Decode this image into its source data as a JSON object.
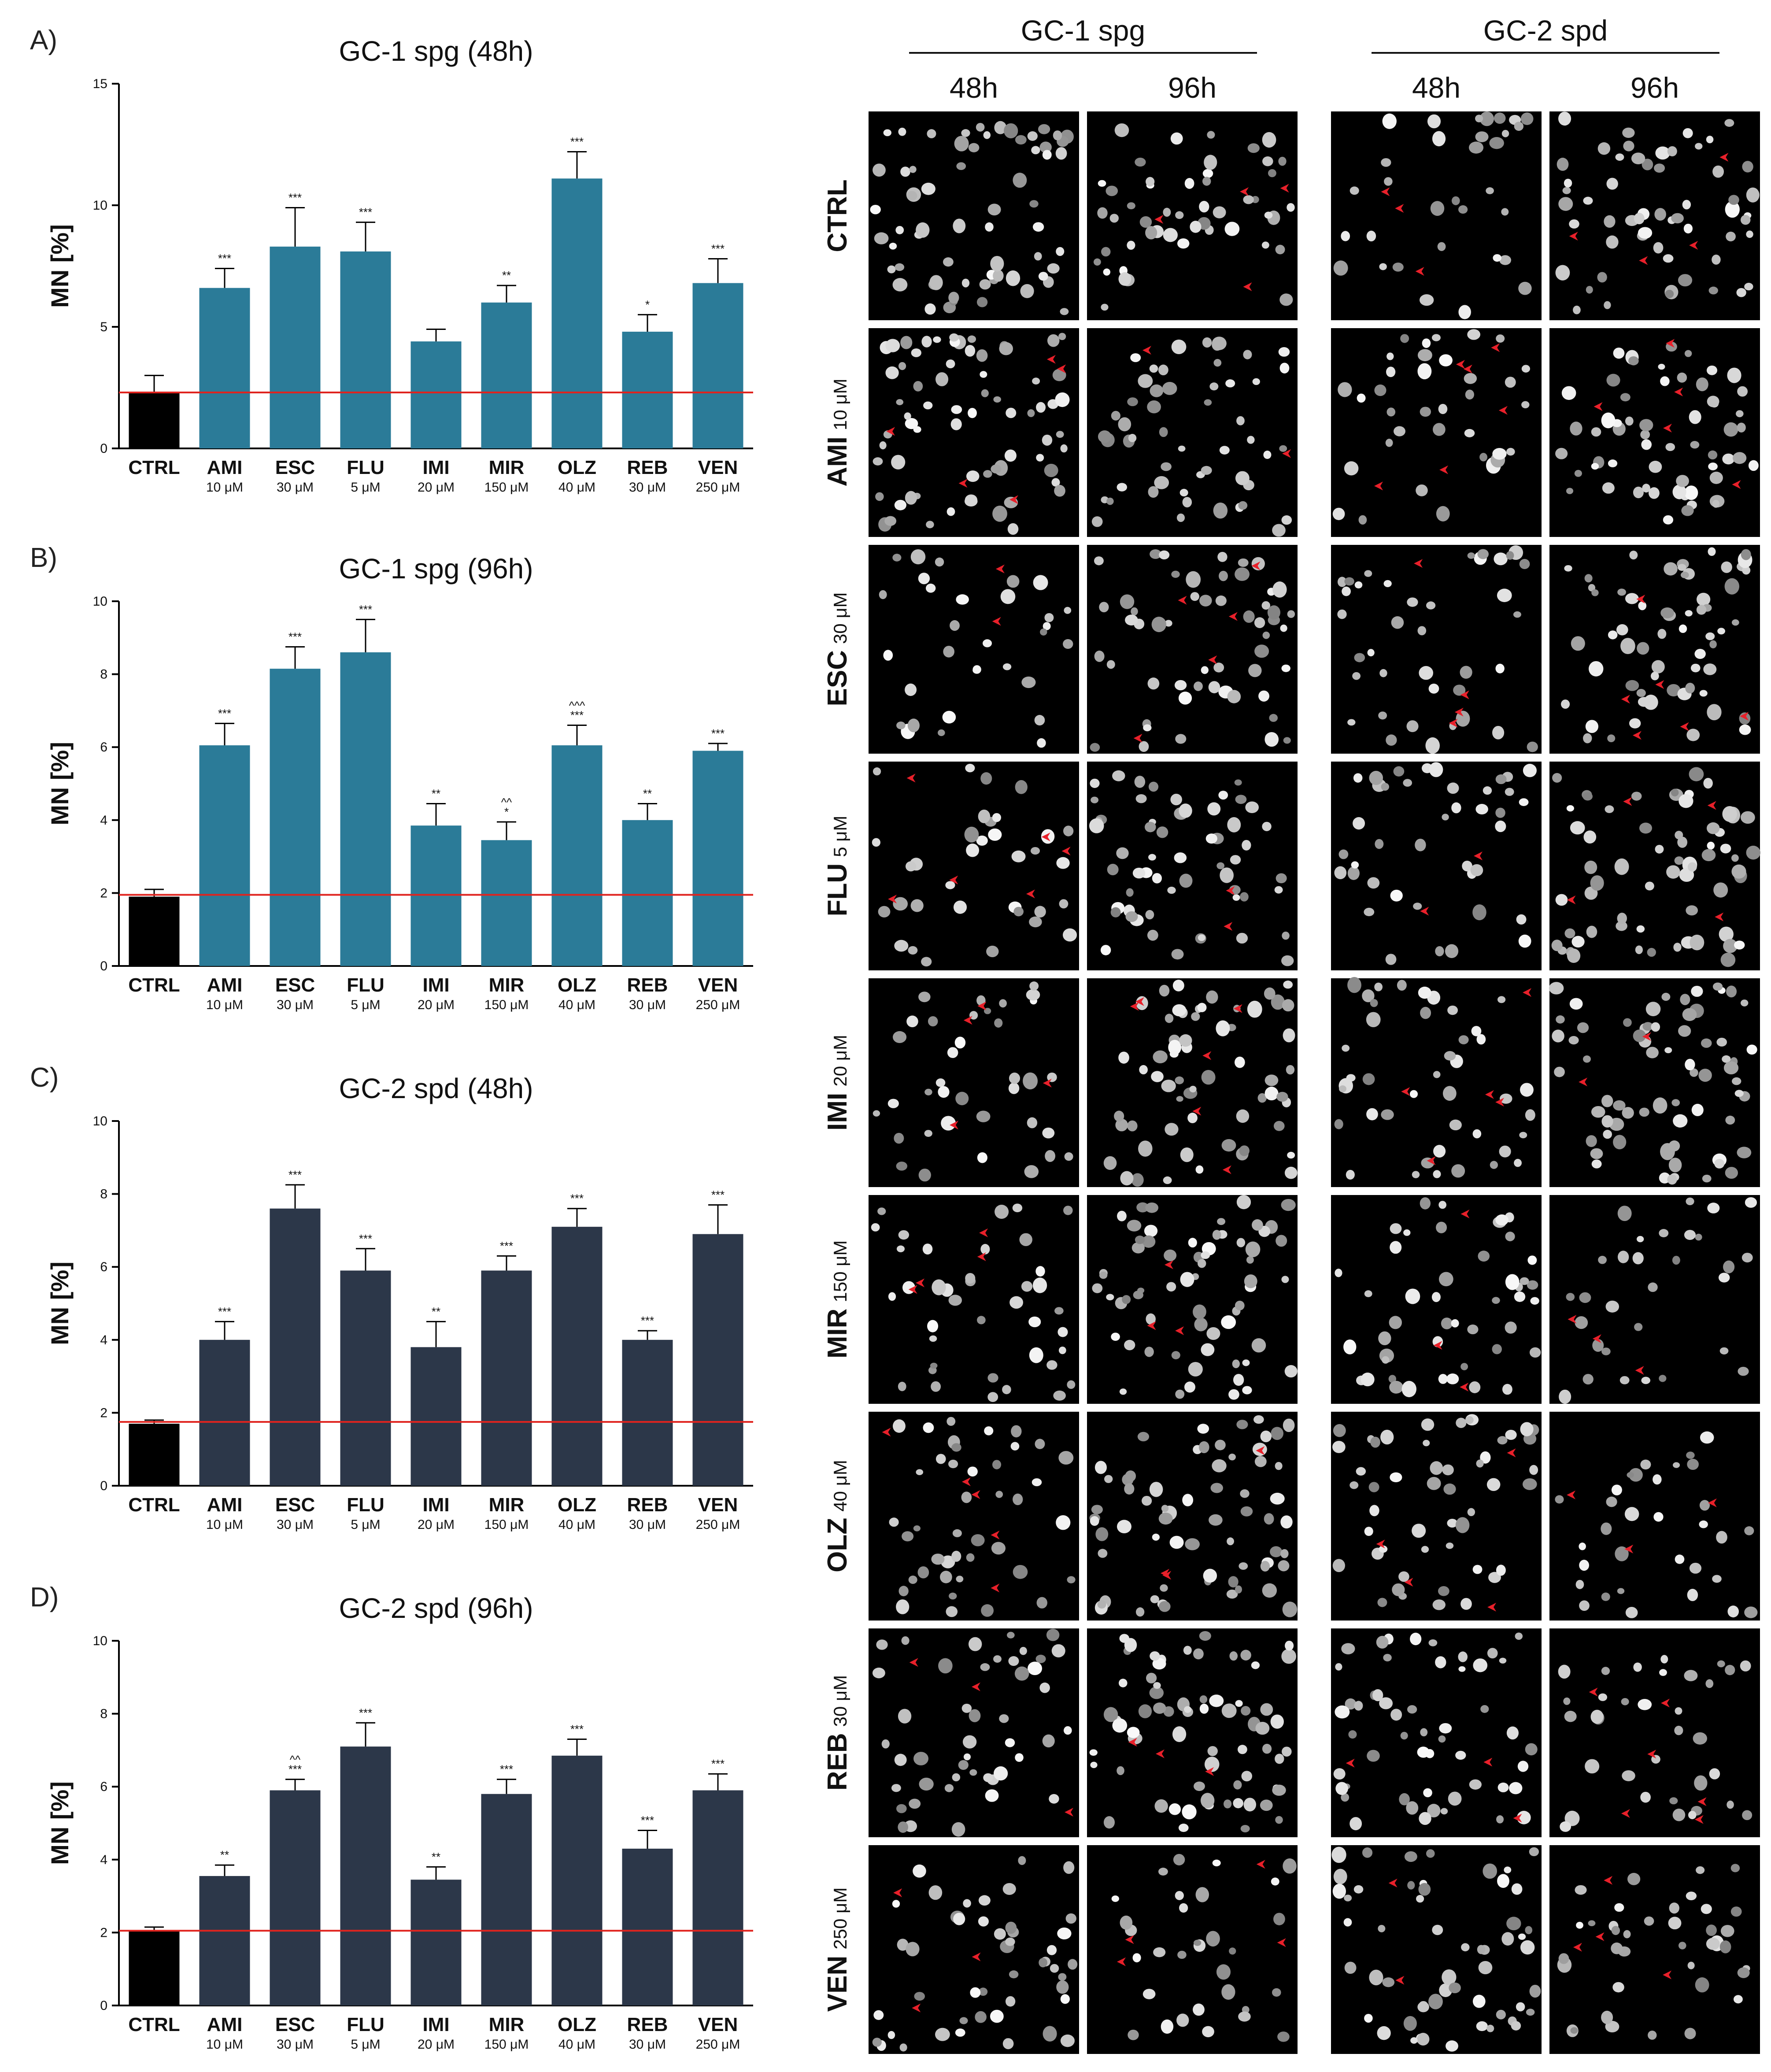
{
  "figure": {
    "right_panel": {
      "groups": [
        {
          "label": "GC-1 spg",
          "times": [
            "48h",
            "96h"
          ]
        },
        {
          "label": "GC-2 spd",
          "times": [
            "48h",
            "96h"
          ]
        }
      ],
      "rows": [
        {
          "drug": "CTRL",
          "dose": ""
        },
        {
          "drug": "AMI",
          "dose": "10 μM"
        },
        {
          "drug": "ESC",
          "dose": "30 μM"
        },
        {
          "drug": "FLU",
          "dose": "5 μM"
        },
        {
          "drug": "IMI",
          "dose": "20 μM"
        },
        {
          "drug": "MIR",
          "dose": "150 μM"
        },
        {
          "drug": "OLZ",
          "dose": "40 μM"
        },
        {
          "drug": "REB",
          "dose": "30 μM"
        },
        {
          "drug": "VEN",
          "dose": "250 μM"
        }
      ],
      "colors": {
        "background": "#000000",
        "nuclei": "#d9d9d9",
        "arrowheads": "#e8202a"
      }
    }
  },
  "chart_data": [
    {
      "type": "bar",
      "panel": "A)",
      "title": "GC-1 spg (48h)",
      "ylabel": "MN [%]",
      "ylim": [
        0,
        15
      ],
      "yticks": [
        0,
        5,
        10,
        15
      ],
      "categories": [
        "CTRL",
        "AMI",
        "ESC",
        "FLU",
        "IMI",
        "MIR",
        "OLZ",
        "REB",
        "VEN"
      ],
      "doses": [
        "",
        "10 μM",
        "30 μM",
        "5 μM",
        "20 μM",
        "150 μM",
        "40 μM",
        "30 μM",
        "250 μM"
      ],
      "values": [
        2.3,
        6.6,
        8.3,
        8.1,
        4.4,
        6.0,
        11.1,
        4.8,
        6.8
      ],
      "errors": [
        0.7,
        0.8,
        1.6,
        1.2,
        0.5,
        0.7,
        1.1,
        0.7,
        1.0
      ],
      "significance": [
        "",
        "***",
        "***",
        "***",
        "",
        "**",
        "***",
        "*",
        "***"
      ],
      "significance2": [
        "",
        "",
        "",
        "",
        "",
        "",
        "",
        "",
        ""
      ],
      "reference_line": 2.3,
      "colors": {
        "control": "#000000",
        "treated": "#2b7b98",
        "reference": "#e0231e"
      }
    },
    {
      "type": "bar",
      "panel": "B)",
      "title": "GC-1 spg (96h)",
      "ylabel": "MN [%]",
      "ylim": [
        0,
        10
      ],
      "yticks": [
        0,
        2,
        4,
        6,
        8,
        10
      ],
      "categories": [
        "CTRL",
        "AMI",
        "ESC",
        "FLU",
        "IMI",
        "MIR",
        "OLZ",
        "REB",
        "VEN"
      ],
      "doses": [
        "",
        "10 μM",
        "30 μM",
        "5 μM",
        "20 μM",
        "150 μM",
        "40 μM",
        "30 μM",
        "250 μM"
      ],
      "values": [
        1.9,
        6.05,
        8.15,
        8.6,
        3.85,
        3.45,
        6.05,
        4.0,
        5.9
      ],
      "errors": [
        0.2,
        0.6,
        0.6,
        0.9,
        0.6,
        0.5,
        0.55,
        0.45,
        0.2
      ],
      "significance": [
        "",
        "***",
        "***",
        "***",
        "**",
        "*",
        "***",
        "**",
        "***"
      ],
      "significance2": [
        "",
        "",
        "",
        "",
        "",
        "^^",
        "^^^",
        "",
        ""
      ],
      "reference_line": 1.95,
      "colors": {
        "control": "#000000",
        "treated": "#2b7b98",
        "reference": "#e0231e"
      }
    },
    {
      "type": "bar",
      "panel": "C)",
      "title": "GC-2 spd (48h)",
      "ylabel": "MN [%]",
      "ylim": [
        0,
        10
      ],
      "yticks": [
        0,
        2,
        4,
        6,
        8,
        10
      ],
      "categories": [
        "CTRL",
        "AMI",
        "ESC",
        "FLU",
        "IMI",
        "MIR",
        "OLZ",
        "REB",
        "VEN"
      ],
      "doses": [
        "",
        "10 μM",
        "30 μM",
        "5 μM",
        "20 μM",
        "150 μM",
        "40 μM",
        "30 μM",
        "250 μM"
      ],
      "values": [
        1.7,
        4.0,
        7.6,
        5.9,
        3.8,
        5.9,
        7.1,
        4.0,
        6.9
      ],
      "errors": [
        0.1,
        0.5,
        0.65,
        0.6,
        0.7,
        0.4,
        0.5,
        0.25,
        0.8
      ],
      "significance": [
        "",
        "***",
        "***",
        "***",
        "**",
        "***",
        "***",
        "***",
        "***"
      ],
      "significance2": [
        "",
        "",
        "",
        "",
        "",
        "",
        "",
        "",
        ""
      ],
      "reference_line": 1.75,
      "colors": {
        "control": "#000000",
        "treated": "#2c3749",
        "reference": "#e0231e"
      }
    },
    {
      "type": "bar",
      "panel": "D)",
      "title": "GC-2 spd (96h)",
      "ylabel": "MN [%]",
      "ylim": [
        0,
        10
      ],
      "yticks": [
        0,
        2,
        4,
        6,
        8,
        10
      ],
      "categories": [
        "CTRL",
        "AMI",
        "ESC",
        "FLU",
        "IMI",
        "MIR",
        "OLZ",
        "REB",
        "VEN"
      ],
      "doses": [
        "",
        "10 μM",
        "30 μM",
        "5 μM",
        "20 μM",
        "150 μM",
        "40 μM",
        "30 μM",
        "250 μM"
      ],
      "values": [
        2.05,
        3.55,
        5.9,
        7.1,
        3.45,
        5.8,
        6.85,
        4.3,
        5.9
      ],
      "errors": [
        0.1,
        0.3,
        0.3,
        0.65,
        0.35,
        0.4,
        0.45,
        0.5,
        0.45
      ],
      "significance": [
        "",
        "**",
        "***",
        "***",
        "**",
        "***",
        "***",
        "***",
        "***"
      ],
      "significance2": [
        "",
        "",
        "^^",
        "",
        "",
        "",
        "",
        "",
        ""
      ],
      "reference_line": 2.05,
      "colors": {
        "control": "#000000",
        "treated": "#2c3749",
        "reference": "#e0231e"
      }
    }
  ]
}
